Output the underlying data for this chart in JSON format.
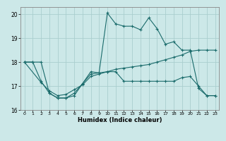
{
  "xlabel": "Humidex (Indice chaleur)",
  "xlim": [
    -0.5,
    23.5
  ],
  "ylim": [
    16,
    20.3
  ],
  "yticks": [
    16,
    17,
    18,
    19,
    20
  ],
  "xticks": [
    0,
    1,
    2,
    3,
    4,
    5,
    6,
    7,
    8,
    9,
    10,
    11,
    12,
    13,
    14,
    15,
    16,
    17,
    18,
    19,
    20,
    21,
    22,
    23
  ],
  "bg_color": "#cce8e8",
  "grid_color": "#aacece",
  "line_color": "#1a6b6b",
  "series1": {
    "x": [
      0,
      1,
      2,
      3,
      4,
      5,
      6,
      7,
      8,
      9,
      10,
      11,
      12,
      13,
      14,
      15,
      16,
      17,
      18,
      19,
      20,
      21,
      22,
      23
    ],
    "y": [
      18.0,
      18.0,
      18.0,
      16.7,
      16.5,
      16.5,
      16.6,
      17.1,
      17.5,
      17.55,
      17.6,
      17.6,
      17.2,
      17.2,
      17.2,
      17.2,
      17.2,
      17.2,
      17.2,
      17.35,
      17.4,
      17.0,
      16.6,
      16.6
    ]
  },
  "series2": {
    "x": [
      0,
      1,
      2,
      3,
      4,
      5,
      6,
      7,
      8,
      9,
      10,
      11,
      12,
      13,
      14,
      15,
      16,
      17,
      18,
      19,
      20,
      21,
      22,
      23
    ],
    "y": [
      18.0,
      18.0,
      17.2,
      16.7,
      16.5,
      16.5,
      16.7,
      17.1,
      17.6,
      17.55,
      20.05,
      19.6,
      19.5,
      19.5,
      19.35,
      19.85,
      19.4,
      18.75,
      18.85,
      18.5,
      18.5,
      16.9,
      16.6,
      16.6
    ]
  },
  "series3": {
    "x": [
      0,
      2,
      3,
      4,
      5,
      6,
      7,
      8,
      9,
      10,
      11,
      12,
      13,
      14,
      15,
      16,
      17,
      18,
      19,
      20,
      21,
      22,
      23
    ],
    "y": [
      18.0,
      17.15,
      16.8,
      16.6,
      16.65,
      16.85,
      17.05,
      17.4,
      17.5,
      17.6,
      17.7,
      17.75,
      17.8,
      17.85,
      17.9,
      18.0,
      18.1,
      18.2,
      18.3,
      18.45,
      18.5,
      18.5,
      18.5
    ]
  }
}
